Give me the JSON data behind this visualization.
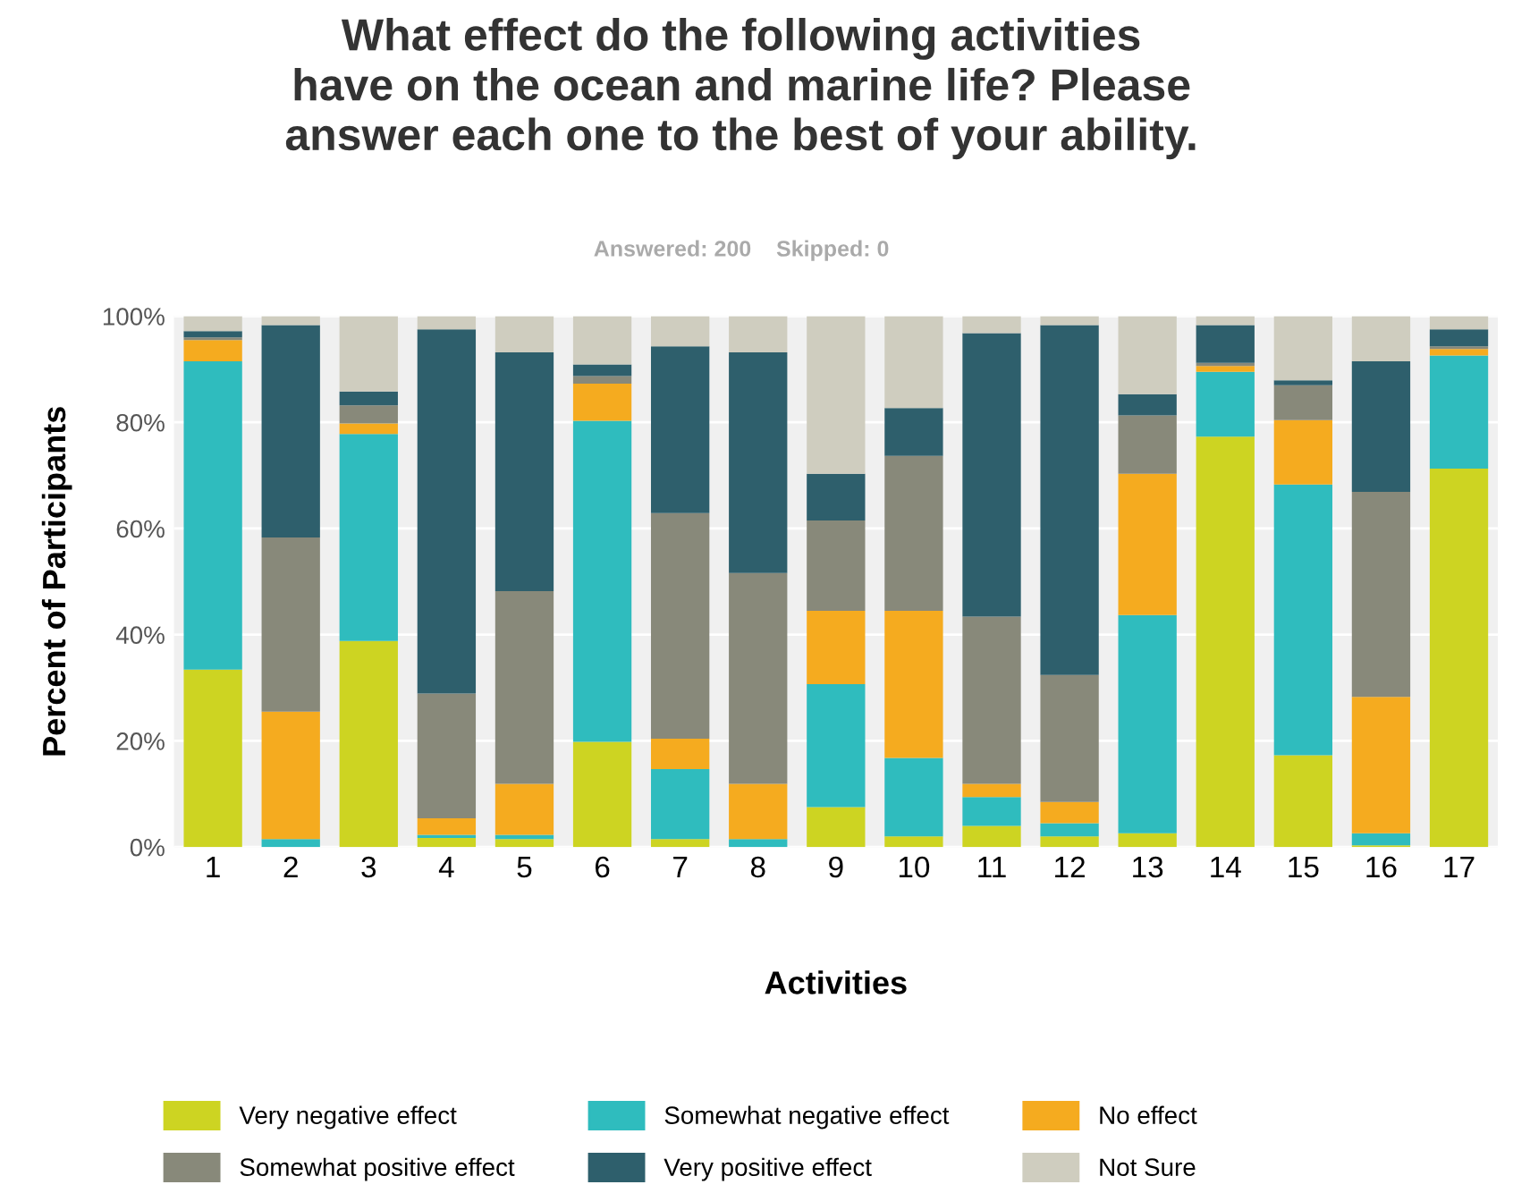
{
  "chart_data": {
    "type": "bar",
    "stacked": true,
    "title": "What effect do the following activities\nhave on the ocean and marine life? Please\nanswer each one to the best of your ability.",
    "subtitle": "Answered: 200    Skipped: 0",
    "xlabel": "Activities",
    "ylabel": "Percent of Participants",
    "categories": [
      "1",
      "2",
      "3",
      "4",
      "5",
      "6",
      "7",
      "8",
      "9",
      "10",
      "11",
      "12",
      "13",
      "14",
      "15",
      "16",
      "17"
    ],
    "series": [
      {
        "name": "Very negative effect",
        "color": "#cdd422",
        "values": [
          33.4,
          0,
          38.8,
          1.7,
          1.5,
          19.8,
          1.5,
          0,
          7.5,
          2,
          4,
          2,
          2.6,
          77.3,
          17.3,
          0.3,
          71.3
        ]
      },
      {
        "name": "Somewhat negative effect",
        "color": "#2fbcbe",
        "values": [
          58.1,
          1.5,
          39,
          0.6,
          0.8,
          60.5,
          13.2,
          1.5,
          23.2,
          14.8,
          5.4,
          2.5,
          41.1,
          12.2,
          51,
          2.3,
          21.3
        ]
      },
      {
        "name": "No effect",
        "color": "#f5ab1f",
        "values": [
          4,
          24,
          2,
          3.1,
          9.6,
          7,
          5.7,
          10.4,
          13.8,
          27.7,
          2.5,
          4,
          26.6,
          1.1,
          12.1,
          25.7,
          1.2
        ]
      },
      {
        "name": "Somewhat positive effect",
        "color": "#88897a",
        "values": [
          0.5,
          32.8,
          3.4,
          23.5,
          36.3,
          1.4,
          42.5,
          39.7,
          17,
          29.2,
          31.5,
          23.9,
          11,
          0.6,
          6.6,
          38.6,
          0.5
        ]
      },
      {
        "name": "Very positive effect",
        "color": "#2e5f6c",
        "values": [
          1.2,
          40,
          2.6,
          68.6,
          45,
          2.2,
          31.4,
          41.6,
          8.8,
          9,
          53.4,
          65.9,
          4,
          7.1,
          0.9,
          24.6,
          3.2
        ]
      },
      {
        "name": "Not Sure",
        "color": "#cfcdbf",
        "values": [
          2.8,
          1.7,
          14.2,
          2.5,
          6.8,
          9.1,
          5.7,
          6.8,
          29.7,
          17.3,
          3.2,
          1.7,
          14.7,
          1.7,
          12.1,
          8.5,
          2.5
        ]
      }
    ],
    "ylim": [
      0,
      100
    ],
    "yticks": [
      {
        "value": 0,
        "label": "0%"
      },
      {
        "value": 20,
        "label": "20%"
      },
      {
        "value": 40,
        "label": "40%"
      },
      {
        "value": 60,
        "label": "60%"
      },
      {
        "value": 80,
        "label": "80%"
      },
      {
        "value": 100,
        "label": "100%"
      }
    ],
    "grid": "y",
    "legend": "bottom"
  }
}
